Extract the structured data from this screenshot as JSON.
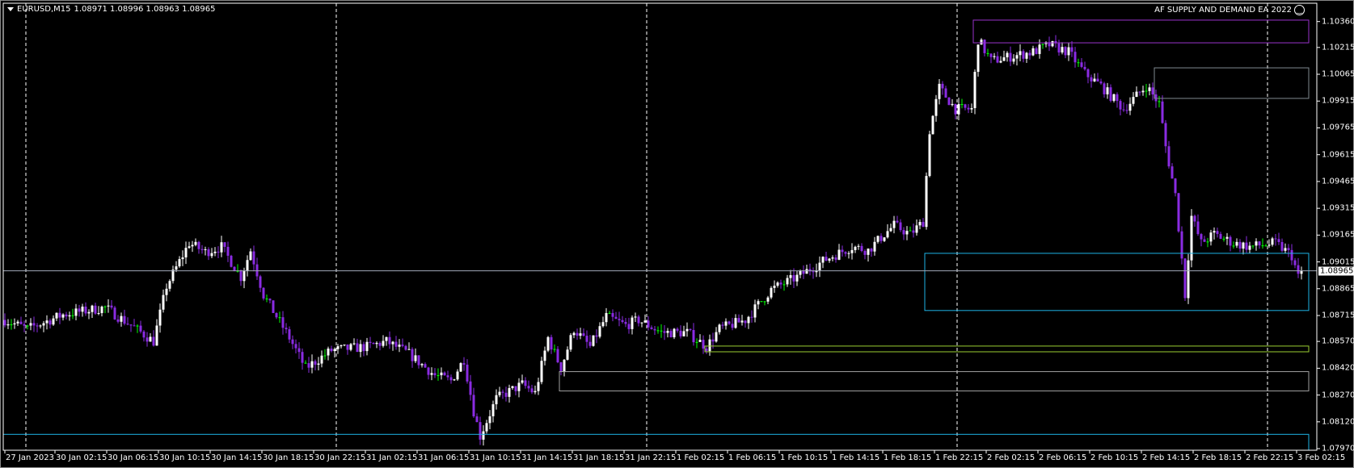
{
  "header": {
    "symbol": "EURUSD,M15",
    "ohlc": "1.08971 1.08996 1.08963 1.08965",
    "indicator_title": "AF SUPPLY AND DEMAND EA 2022",
    "indicator_icon": "smiley-icon"
  },
  "colors": {
    "background": "#000000",
    "bull": "#ffffff",
    "bear": "#8a2be2",
    "doji": "#00ff00",
    "grid": "#ffffff",
    "axis": "#ffffff"
  },
  "chart_data": {
    "type": "candlestick",
    "timeframe": "M15",
    "ylim": [
      1.0787,
      1.1041
    ],
    "y_ticks": [
      "1.10360",
      "1.10215",
      "1.10065",
      "1.09915",
      "1.09765",
      "1.09615",
      "1.09465",
      "1.09315",
      "1.09165",
      "1.09015",
      "1.08865",
      "1.08715",
      "1.08570",
      "1.08420",
      "1.08270",
      "1.08120",
      "1.07970"
    ],
    "x_ticks": [
      "27 Jan 2023",
      "30 Jan 02:15",
      "30 Jan 06:15",
      "30 Jan 10:15",
      "30 Jan 14:15",
      "30 Jan 18:15",
      "30 Jan 22:15",
      "31 Jan 02:15",
      "31 Jan 06:15",
      "31 Jan 10:15",
      "31 Jan 14:15",
      "31 Jan 18:15",
      "31 Jan 22:15",
      "1 Feb 02:15",
      "1 Feb 06:15",
      "1 Feb 10:15",
      "1 Feb 14:15",
      "1 Feb 18:15",
      "1 Feb 22:15",
      "2 Feb 02:15",
      "2 Feb 06:15",
      "2 Feb 10:15",
      "2 Feb 14:15",
      "2 Feb 18:15",
      "2 Feb 22:15",
      "3 Feb 02:15"
    ],
    "current_price": "1.08965",
    "day_separators": true,
    "close_path": [
      [
        "2023-01-27 22:15",
        1.0869
      ],
      [
        "2023-01-30 00:00",
        1.0864
      ],
      [
        "2023-01-30 02:45",
        1.0872
      ],
      [
        "2023-01-30 06:00",
        1.0876
      ],
      [
        "2023-01-30 08:00",
        1.0866
      ],
      [
        "2023-01-30 09:45",
        1.0857
      ],
      [
        "2023-01-30 10:45",
        1.0888
      ],
      [
        "2023-01-30 12:30",
        1.0912
      ],
      [
        "2023-01-30 13:45",
        1.0907
      ],
      [
        "2023-01-30 15:00",
        1.091
      ],
      [
        "2023-01-30 16:30",
        1.0893
      ],
      [
        "2023-01-30 17:15",
        1.0908
      ],
      [
        "2023-01-30 18:15",
        1.0883
      ],
      [
        "2023-01-30 20:15",
        1.0859
      ],
      [
        "2023-01-30 21:30",
        1.0842
      ],
      [
        "2023-01-30 23:30",
        1.0852
      ],
      [
        "2023-01-31 02:15",
        1.0854
      ],
      [
        "2023-01-31 03:45",
        1.0857
      ],
      [
        "2023-01-31 05:30",
        1.085
      ],
      [
        "2023-01-31 07:30",
        1.0838
      ],
      [
        "2023-01-31 08:45",
        1.0835
      ],
      [
        "2023-01-31 09:45",
        1.0847
      ],
      [
        "2023-01-31 10:30",
        1.0818
      ],
      [
        "2023-01-31 11:00",
        1.0804
      ],
      [
        "2023-01-31 12:15",
        1.0825
      ],
      [
        "2023-01-31 14:15",
        1.0833
      ],
      [
        "2023-01-31 15:15",
        1.0828
      ],
      [
        "2023-01-31 16:15",
        1.0859
      ],
      [
        "2023-01-31 17:15",
        1.0842
      ],
      [
        "2023-01-31 18:15",
        1.0864
      ],
      [
        "2023-01-31 19:30",
        1.0854
      ],
      [
        "2023-01-31 20:45",
        1.0871
      ],
      [
        "2023-01-31 22:15",
        1.0866
      ],
      [
        "2023-01-31 23:15",
        1.0869
      ],
      [
        "2023-02-01 01:00",
        1.0862
      ],
      [
        "2023-02-01 03:00",
        1.0862
      ],
      [
        "2023-02-01 04:30",
        1.0854
      ],
      [
        "2023-02-01 05:30",
        1.0864
      ],
      [
        "2023-02-01 07:30",
        1.0869
      ],
      [
        "2023-02-01 09:30",
        1.0886
      ],
      [
        "2023-02-01 11:30",
        1.0893
      ],
      [
        "2023-02-01 13:45",
        1.0903
      ],
      [
        "2023-02-01 15:45",
        1.091
      ],
      [
        "2023-02-01 17:00",
        1.0908
      ],
      [
        "2023-02-01 18:15",
        1.0917
      ],
      [
        "2023-02-01 19:00",
        1.0922
      ],
      [
        "2023-02-01 20:15",
        1.0917
      ],
      [
        "2023-02-01 21:15",
        1.0924
      ],
      [
        "2023-02-01 21:45",
        1.0975
      ],
      [
        "2023-02-01 22:30",
        1.0999
      ],
      [
        "2023-02-01 23:45",
        1.0987
      ],
      [
        "2023-02-02 01:00",
        1.0987
      ],
      [
        "2023-02-02 01:30",
        1.1026
      ],
      [
        "2023-02-02 02:30",
        1.1014
      ],
      [
        "2023-02-02 03:45",
        1.1016
      ],
      [
        "2023-02-02 05:45",
        1.1019
      ],
      [
        "2023-02-02 07:00",
        1.1023
      ],
      [
        "2023-02-02 08:30",
        1.1019
      ],
      [
        "2023-02-02 09:45",
        1.1007
      ],
      [
        "2023-02-02 11:00",
        1.1
      ],
      [
        "2023-02-02 12:45",
        1.0987
      ],
      [
        "2023-02-02 14:30",
        1.1
      ],
      [
        "2023-02-02 15:30",
        1.099
      ],
      [
        "2023-02-02 16:00",
        1.0966
      ],
      [
        "2023-02-02 16:45",
        1.0939
      ],
      [
        "2023-02-02 17:15",
        1.0903
      ],
      [
        "2023-02-02 17:30",
        1.0883
      ],
      [
        "2023-02-02 18:00",
        1.0927
      ],
      [
        "2023-02-02 18:45",
        1.0912
      ],
      [
        "2023-02-02 19:45",
        1.0917
      ],
      [
        "2023-02-02 21:15",
        1.0912
      ],
      [
        "2023-02-02 22:30",
        1.091
      ],
      [
        "2023-02-03 00:30",
        1.0912
      ],
      [
        "2023-02-03 01:45",
        1.0905
      ],
      [
        "2023-02-03 02:15",
        1.0893
      ],
      [
        "2023-02-03 02:30",
        1.08965
      ]
    ],
    "zones": [
      {
        "kind": "supply",
        "color": "#9932cc",
        "from": "2023-02-02 01:15",
        "high": 1.10368,
        "low": 1.10241
      },
      {
        "kind": "supply",
        "color": "#808a90",
        "from": "2023-02-02 15:15",
        "high": 1.10101,
        "low": 1.0993
      },
      {
        "kind": "demand",
        "color": "#1eb4e6",
        "from": "2023-02-01 21:30",
        "high": 1.09063,
        "low": 1.08743
      },
      {
        "kind": "demand",
        "color": "#9acd32",
        "from": "2023-02-01 04:30",
        "high": 1.08544,
        "low": 1.08512
      },
      {
        "kind": "demand",
        "color": "#a0a0a0",
        "from": "2023-01-31 17:15",
        "high": 1.08401,
        "low": 1.08293
      },
      {
        "kind": "demand",
        "color": "#1eb4e6",
        "from": "2023-01-27 22:15",
        "high": 1.0805,
        "low": 1.0787
      }
    ]
  }
}
